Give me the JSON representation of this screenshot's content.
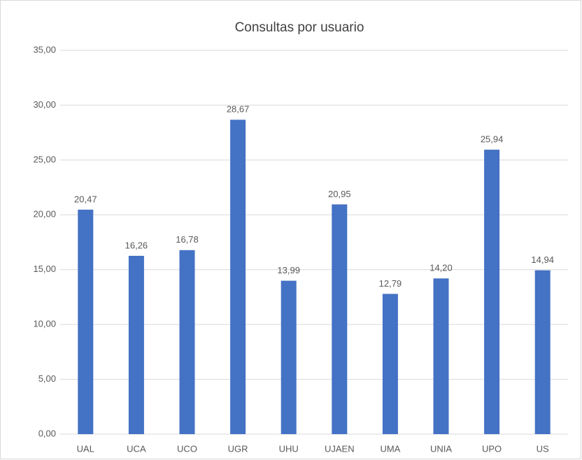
{
  "chart_data": {
    "type": "bar",
    "title": "Consultas por usuario",
    "categories": [
      "UAL",
      "UCA",
      "UCO",
      "UGR",
      "UHU",
      "UJAEN",
      "UMA",
      "UNIA",
      "UPO",
      "US"
    ],
    "values": [
      20.47,
      16.26,
      16.78,
      28.67,
      13.99,
      20.95,
      12.79,
      14.2,
      25.94,
      14.94
    ],
    "value_labels": [
      "20,47",
      "16,26",
      "16,78",
      "28,67",
      "13,99",
      "20,95",
      "12,79",
      "14,20",
      "25,94",
      "14,94"
    ],
    "color": "#4472c4",
    "ylim": [
      0,
      35
    ],
    "yticks": [
      {
        "value": 0,
        "label": "0,00"
      },
      {
        "value": 5,
        "label": "5,00"
      },
      {
        "value": 10,
        "label": "10,00"
      },
      {
        "value": 15,
        "label": "15,00"
      },
      {
        "value": 20,
        "label": "20,00"
      },
      {
        "value": 25,
        "label": "25,00"
      },
      {
        "value": 30,
        "label": "30,00"
      },
      {
        "value": 35,
        "label": "35,00"
      }
    ],
    "grid": true
  }
}
